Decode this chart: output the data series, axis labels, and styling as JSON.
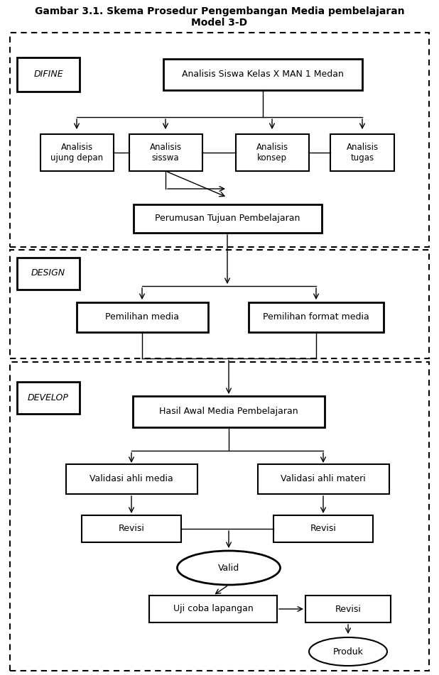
{
  "title_line1": "Gambar 3.1. Skema Prosedur Pengembangan Media pembelajaran",
  "title_line2": "Model 3-D",
  "background_color": "#ffffff",
  "nodes": {
    "analisis_siswa_kelas": "Analisis Siswa Kelas X MAN 1 Medan",
    "analisis_ujung": "Analisis\nujung depan",
    "analisis_siswa": "Analisis\nsisswa",
    "analisis_konsep": "Analisis\nkonsep",
    "analisis_tugas": "Analisis\ntugas",
    "perumusan": "Perumusan Tujuan Pembelajaran",
    "pemilihan_media": "Pemilihan media",
    "pemilihan_format": "Pemilihan format media",
    "hasil_awal": "Hasil Awal Media Pembelajaran",
    "validasi_media": "Validasi ahli media",
    "validasi_materi": "Validasi ahli materi",
    "revisi1": "Revisi",
    "revisi2": "Revisi",
    "valid": "Valid",
    "uji_coba": "Uji coba lapangan",
    "revisi3": "Revisi",
    "produk": "Produk"
  }
}
